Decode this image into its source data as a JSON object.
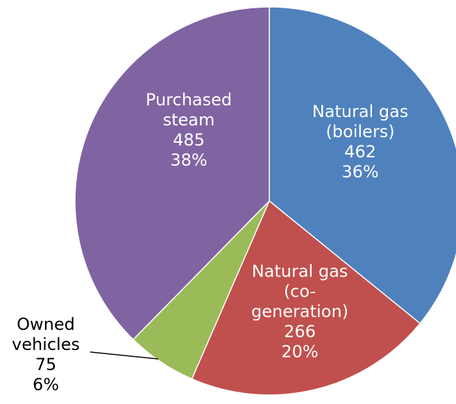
{
  "chart_data": {
    "type": "pie",
    "categories": [
      "Natural gas (boilers)",
      "Natural gas (co-generation)",
      "Owned vehicles",
      "Purchased steam"
    ],
    "values": [
      462,
      266,
      75,
      485
    ],
    "percent_labels": [
      "36%",
      "20%",
      "6%",
      "38%"
    ],
    "colors": [
      "#4f81bd",
      "#c0504d",
      "#9bbb59",
      "#8064a2"
    ]
  }
}
